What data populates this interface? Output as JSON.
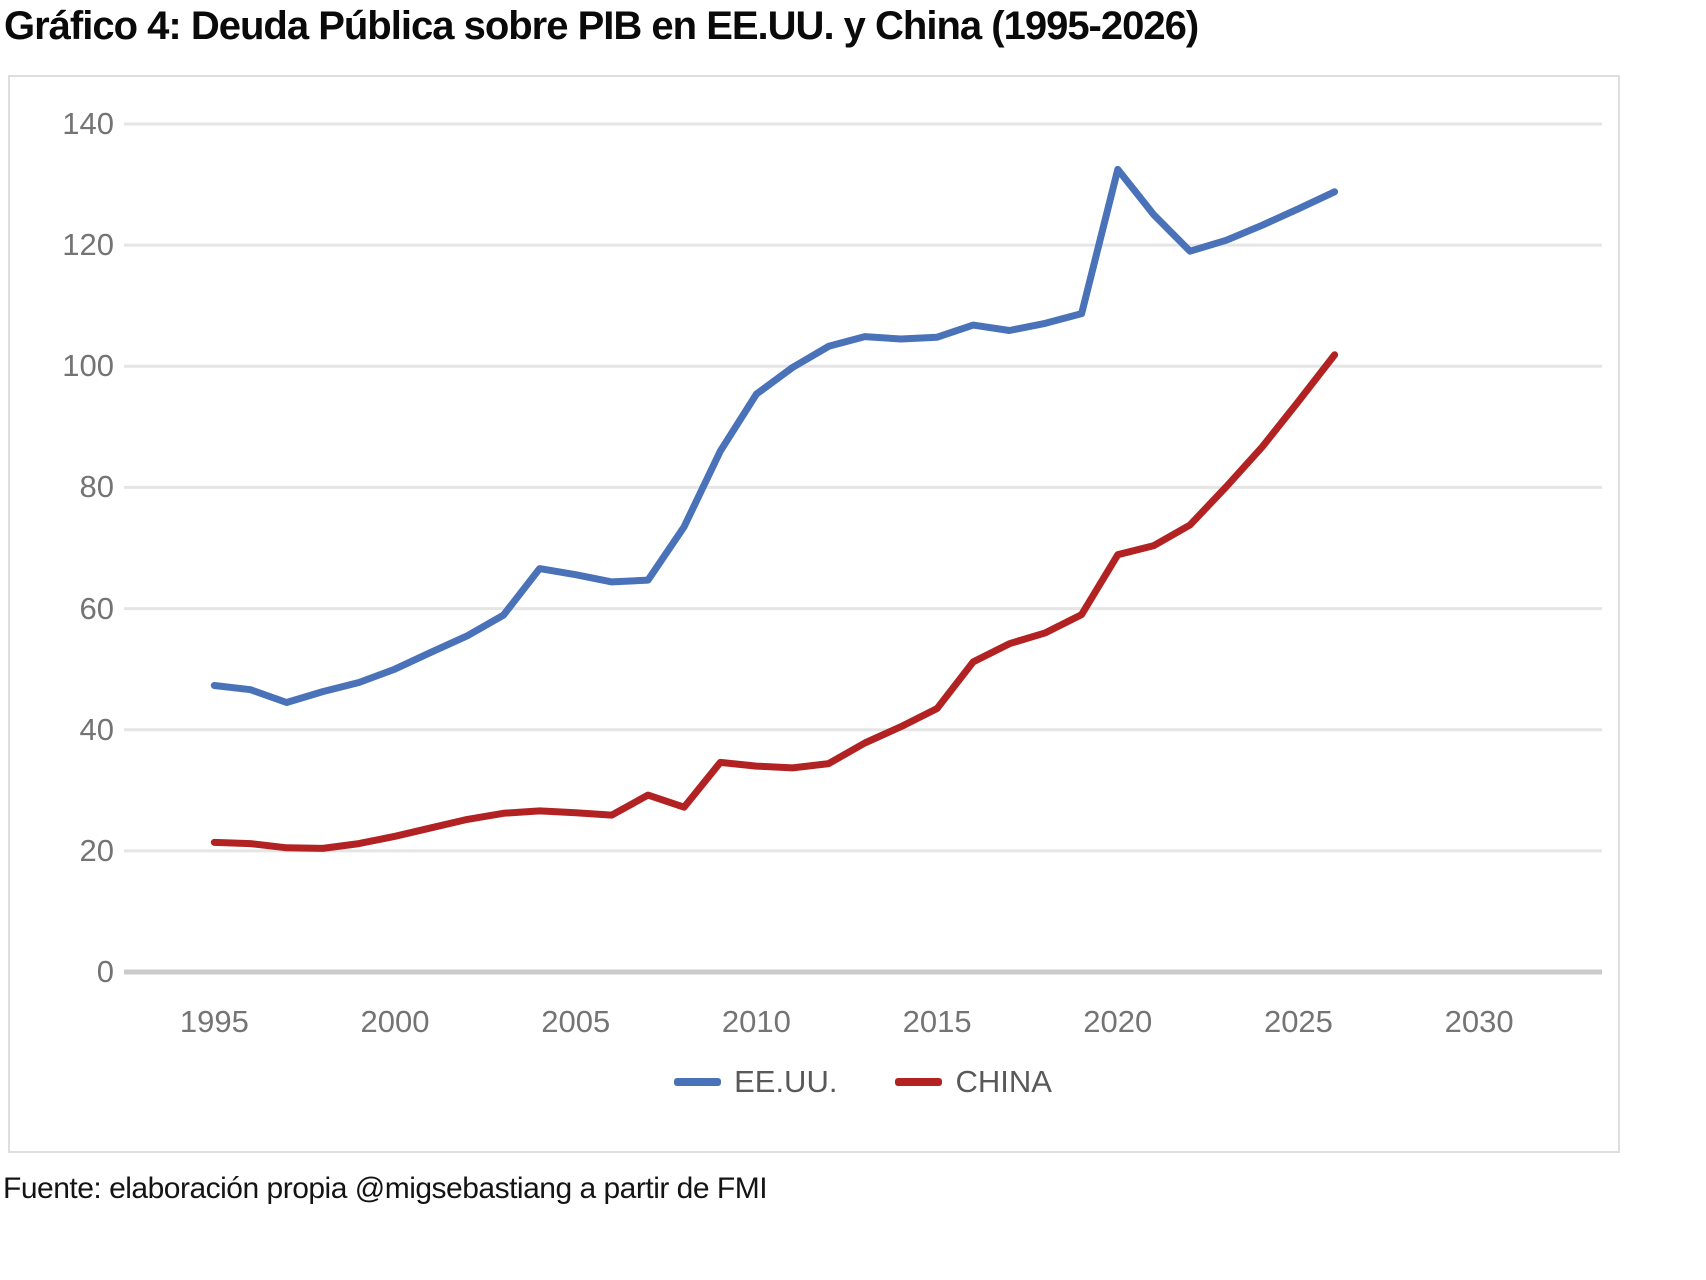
{
  "title": "Gráfico 4: Deuda Pública sobre PIB en EE.UU. y China (1995-2026)",
  "source": "Fuente: elaboración propia @migsebastiang a partir de FMI",
  "colors": {
    "grid": "#e5e5e5",
    "axis_line": "#cbcbcb",
    "tick_text": "#747474",
    "legend_text": "#595959",
    "us_line": "#4a72b8",
    "china_line": "#b22222"
  },
  "chart_data": {
    "type": "line",
    "title": "Gráfico 4: Deuda Pública sobre PIB en EE.UU. y China (1995-2026)",
    "xlabel": "",
    "ylabel": "",
    "grid": true,
    "legend_position": "bottom",
    "xlim": [
      1992.5,
      2033.4
    ],
    "ylim": [
      0,
      140
    ],
    "xticks": [
      1995,
      2000,
      2005,
      2010,
      2015,
      2020,
      2025,
      2030
    ],
    "yticks": [
      0,
      20,
      40,
      60,
      80,
      100,
      120,
      140
    ],
    "x": [
      1995,
      1996,
      1997,
      1998,
      1999,
      2000,
      2001,
      2002,
      2003,
      2004,
      2005,
      2006,
      2007,
      2008,
      2009,
      2010,
      2011,
      2012,
      2013,
      2014,
      2015,
      2016,
      2017,
      2018,
      2019,
      2020,
      2021,
      2022,
      2023,
      2024,
      2025,
      2026
    ],
    "series": [
      {
        "name": "EE.UU.",
        "color": "#4a72b8",
        "values": [
          47.3,
          46.6,
          44.5,
          46.3,
          47.8,
          50.0,
          52.8,
          55.5,
          58.9,
          66.6,
          65.6,
          64.4,
          64.7,
          73.5,
          86.0,
          95.4,
          99.8,
          103.3,
          104.9,
          104.5,
          104.8,
          106.8,
          105.9,
          107.1,
          108.7,
          132.5,
          125.0,
          119.0,
          120.8,
          123.3,
          126.0,
          128.8
        ]
      },
      {
        "name": "CHINA",
        "color": "#b22222",
        "values": [
          21.4,
          21.2,
          20.5,
          20.4,
          21.2,
          22.4,
          23.8,
          25.2,
          26.2,
          26.6,
          26.3,
          25.9,
          29.2,
          27.2,
          34.6,
          34.0,
          33.7,
          34.4,
          37.8,
          40.5,
          43.5,
          51.2,
          54.2,
          56.0,
          59.0,
          68.9,
          70.4,
          73.8,
          80.1,
          86.7,
          94.2,
          101.9
        ]
      }
    ]
  }
}
